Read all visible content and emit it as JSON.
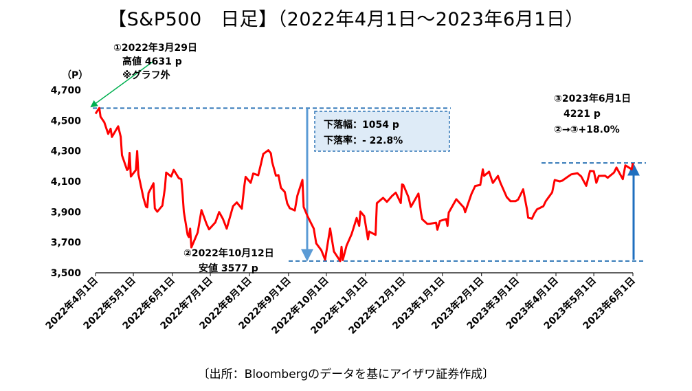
{
  "title": "【S&P500　日足】（2022年4月1日～2023年6月1日）",
  "source_note": "〔出所：Bloombergのデータを基にアイザワ証券作成〕",
  "annotations": {
    "high_line1": "①2022年3月29日",
    "high_line2": "高値 4631 p",
    "high_line3": "※グラフ外",
    "low_line1": "②2022年10月12日",
    "low_line2": "安値 3577 p",
    "end_line1": "③2023年6月1日",
    "end_line2": "4221 p",
    "end_line3": "②→③+18.0%",
    "drop_width": "下落幅：1054 p",
    "drop_rate": "下落率：- 22.8%"
  },
  "colors": {
    "line": "#ff0000",
    "guide": "#2e75b6",
    "box_border": "#2e75b6",
    "box_fill": "#deebf7",
    "high_arrow": "#00b050"
  },
  "chart_data": {
    "type": "line",
    "title": "【S&P500　日足】（2022年4月1日～2023年6月1日）",
    "ylabel": "（P）",
    "ylim": [
      3500,
      4700
    ],
    "yticks": [
      3500,
      3700,
      3900,
      4100,
      4300,
      4500,
      4700
    ],
    "ytick_labels": [
      "3,500",
      "3,700",
      "3,900",
      "4,100",
      "4,300",
      "4,500",
      "4,700"
    ],
    "xlim": [
      "2022-04-01",
      "2023-06-01"
    ],
    "xtick_dates": [
      "2022-04-01",
      "2022-05-01",
      "2022-06-01",
      "2022-07-01",
      "2022-08-01",
      "2022-09-01",
      "2022-10-01",
      "2022-11-01",
      "2022-12-01",
      "2023-01-01",
      "2023-02-01",
      "2023-03-01",
      "2023-04-01",
      "2023-05-01",
      "2023-06-01"
    ],
    "xtick_labels": [
      "2022年4月1日",
      "2022年5月1日",
      "2022年6月1日",
      "2022年7月1日",
      "2022年8月1日",
      "2022年9月1日",
      "2022年10月1日",
      "2022年11月1日",
      "2022年12月1日",
      "2023年1月1日",
      "2023年2月1日",
      "2023年3月1日",
      "2023年4月1日",
      "2023年5月1日",
      "2023年6月1日"
    ],
    "grid": false,
    "series": [
      {
        "points": [
          [
            "2022-04-01",
            4545
          ],
          [
            "2022-04-04",
            4582
          ],
          [
            "2022-04-05",
            4525
          ],
          [
            "2022-04-07",
            4500
          ],
          [
            "2022-04-08",
            4488
          ],
          [
            "2022-04-11",
            4412
          ],
          [
            "2022-04-13",
            4446
          ],
          [
            "2022-04-14",
            4392
          ],
          [
            "2022-04-19",
            4462
          ],
          [
            "2022-04-21",
            4393
          ],
          [
            "2022-04-22",
            4272
          ],
          [
            "2022-04-26",
            4175
          ],
          [
            "2022-04-27",
            4183
          ],
          [
            "2022-04-28",
            4287
          ],
          [
            "2022-04-29",
            4132
          ],
          [
            "2022-05-03",
            4175
          ],
          [
            "2022-05-04",
            4300
          ],
          [
            "2022-05-05",
            4147
          ],
          [
            "2022-05-09",
            3991
          ],
          [
            "2022-05-11",
            3935
          ],
          [
            "2022-05-12",
            3930
          ],
          [
            "2022-05-13",
            4023
          ],
          [
            "2022-05-17",
            4088
          ],
          [
            "2022-05-18",
            3923
          ],
          [
            "2022-05-20",
            3901
          ],
          [
            "2022-05-24",
            3941
          ],
          [
            "2022-05-26",
            4057
          ],
          [
            "2022-05-27",
            4158
          ],
          [
            "2022-05-31",
            4132
          ],
          [
            "2022-06-02",
            4176
          ],
          [
            "2022-06-06",
            4121
          ],
          [
            "2022-06-08",
            4115
          ],
          [
            "2022-06-09",
            4017
          ],
          [
            "2022-06-10",
            3901
          ],
          [
            "2022-06-13",
            3750
          ],
          [
            "2022-06-14",
            3735
          ],
          [
            "2022-06-15",
            3790
          ],
          [
            "2022-06-16",
            3667
          ],
          [
            "2022-06-21",
            3765
          ],
          [
            "2022-06-24",
            3912
          ],
          [
            "2022-06-28",
            3821
          ],
          [
            "2022-06-30",
            3785
          ],
          [
            "2022-07-05",
            3831
          ],
          [
            "2022-07-08",
            3899
          ],
          [
            "2022-07-11",
            3854
          ],
          [
            "2022-07-14",
            3790
          ],
          [
            "2022-07-19",
            3937
          ],
          [
            "2022-07-22",
            3962
          ],
          [
            "2022-07-26",
            3921
          ],
          [
            "2022-07-28",
            4072
          ],
          [
            "2022-07-29",
            4130
          ],
          [
            "2022-08-02",
            4091
          ],
          [
            "2022-08-04",
            4152
          ],
          [
            "2022-08-08",
            4140
          ],
          [
            "2022-08-10",
            4210
          ],
          [
            "2022-08-12",
            4280
          ],
          [
            "2022-08-16",
            4305
          ],
          [
            "2022-08-18",
            4284
          ],
          [
            "2022-08-19",
            4228
          ],
          [
            "2022-08-22",
            4138
          ],
          [
            "2022-08-24",
            4141
          ],
          [
            "2022-08-26",
            4058
          ],
          [
            "2022-08-29",
            4031
          ],
          [
            "2022-08-31",
            3955
          ],
          [
            "2022-09-02",
            3924
          ],
          [
            "2022-09-06",
            3909
          ],
          [
            "2022-09-08",
            4006
          ],
          [
            "2022-09-12",
            4110
          ],
          [
            "2022-09-13",
            3932
          ],
          [
            "2022-09-16",
            3873
          ],
          [
            "2022-09-21",
            3790
          ],
          [
            "2022-09-23",
            3693
          ],
          [
            "2022-09-27",
            3648
          ],
          [
            "2022-09-30",
            3586
          ],
          [
            "2022-10-04",
            3791
          ],
          [
            "2022-10-07",
            3640
          ],
          [
            "2022-10-12",
            3577
          ],
          [
            "2022-10-13",
            3670
          ],
          [
            "2022-10-14",
            3584
          ],
          [
            "2022-10-17",
            3678
          ],
          [
            "2022-10-21",
            3753
          ],
          [
            "2022-10-25",
            3860
          ],
          [
            "2022-10-27",
            3808
          ],
          [
            "2022-10-28",
            3902
          ],
          [
            "2022-10-31",
            3872
          ],
          [
            "2022-11-03",
            3720
          ],
          [
            "2022-11-04",
            3771
          ],
          [
            "2022-11-09",
            3749
          ],
          [
            "2022-11-10",
            3957
          ],
          [
            "2022-11-15",
            3992
          ],
          [
            "2022-11-18",
            3966
          ],
          [
            "2022-11-22",
            4004
          ],
          [
            "2022-11-25",
            4026
          ],
          [
            "2022-11-29",
            3958
          ],
          [
            "2022-11-30",
            4080
          ],
          [
            "2022-12-01",
            4077
          ],
          [
            "2022-12-05",
            3999
          ],
          [
            "2022-12-07",
            3933
          ],
          [
            "2022-12-13",
            4020
          ],
          [
            "2022-12-15",
            3895
          ],
          [
            "2022-12-16",
            3852
          ],
          [
            "2022-12-20",
            3821
          ],
          [
            "2022-12-22",
            3822
          ],
          [
            "2022-12-27",
            3829
          ],
          [
            "2022-12-28",
            3783
          ],
          [
            "2022-12-30",
            3840
          ],
          [
            "2023-01-04",
            3853
          ],
          [
            "2023-01-05",
            3808
          ],
          [
            "2023-01-06",
            3895
          ],
          [
            "2023-01-12",
            3983
          ],
          [
            "2023-01-18",
            3928
          ],
          [
            "2023-01-19",
            3898
          ],
          [
            "2023-01-24",
            4017
          ],
          [
            "2023-01-27",
            4070
          ],
          [
            "2023-01-31",
            4077
          ],
          [
            "2023-02-02",
            4179
          ],
          [
            "2023-02-03",
            4136
          ],
          [
            "2023-02-07",
            4164
          ],
          [
            "2023-02-10",
            4090
          ],
          [
            "2023-02-14",
            4136
          ],
          [
            "2023-02-16",
            4090
          ],
          [
            "2023-02-21",
            3997
          ],
          [
            "2023-02-24",
            3970
          ],
          [
            "2023-02-28",
            3970
          ],
          [
            "2023-03-02",
            3981
          ],
          [
            "2023-03-06",
            4048
          ],
          [
            "2023-03-09",
            3918
          ],
          [
            "2023-03-10",
            3862
          ],
          [
            "2023-03-13",
            3855
          ],
          [
            "2023-03-15",
            3891
          ],
          [
            "2023-03-17",
            3917
          ],
          [
            "2023-03-22",
            3937
          ],
          [
            "2023-03-24",
            3971
          ],
          [
            "2023-03-29",
            4028
          ],
          [
            "2023-03-31",
            4109
          ],
          [
            "2023-04-04",
            4100
          ],
          [
            "2023-04-06",
            4105
          ],
          [
            "2023-04-13",
            4146
          ],
          [
            "2023-04-18",
            4154
          ],
          [
            "2023-04-21",
            4133
          ],
          [
            "2023-04-25",
            4071
          ],
          [
            "2023-04-28",
            4169
          ],
          [
            "2023-05-01",
            4167
          ],
          [
            "2023-05-03",
            4091
          ],
          [
            "2023-05-05",
            4136
          ],
          [
            "2023-05-10",
            4137
          ],
          [
            "2023-05-12",
            4124
          ],
          [
            "2023-05-17",
            4158
          ],
          [
            "2023-05-19",
            4191
          ],
          [
            "2023-05-24",
            4115
          ],
          [
            "2023-05-26",
            4205
          ],
          [
            "2023-05-31",
            4180
          ],
          [
            "2023-06-01",
            4221
          ]
        ]
      }
    ],
    "reference_lines": {
      "high": 4581,
      "low": 3577,
      "end": 4221
    }
  }
}
